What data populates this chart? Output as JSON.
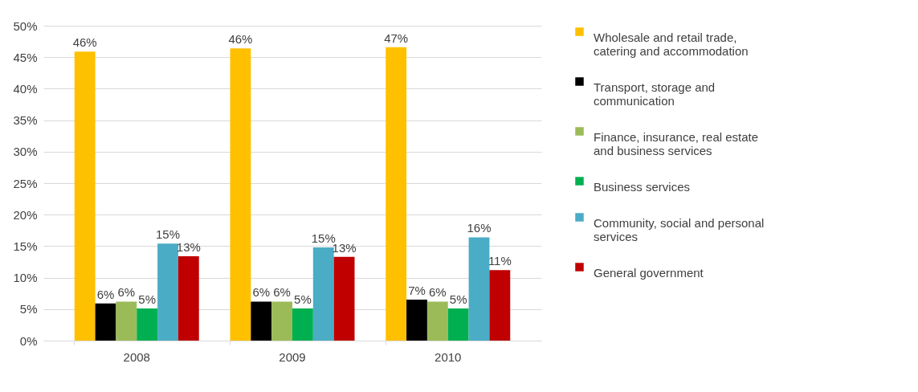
{
  "chart_data": {
    "type": "bar",
    "categories": [
      "2008",
      "2009",
      "2010"
    ],
    "series": [
      {
        "name": "Wholesale and retail trade, catering and accommodation",
        "color": "#ffc000",
        "values": [
          45.9,
          46.4,
          46.6
        ],
        "value_labels": [
          "46%",
          "46%",
          "47%"
        ]
      },
      {
        "name": "Transport, storage and communication",
        "color": "#000000",
        "values": [
          5.9,
          6.2,
          6.5
        ],
        "value_labels": [
          "6%",
          "6%",
          "7%"
        ]
      },
      {
        "name": "Finance, insurance, real estate and business services",
        "color": "#9bbb59",
        "values": [
          6.2,
          6.2,
          6.2
        ],
        "value_labels": [
          "6%",
          "6%",
          "6%"
        ]
      },
      {
        "name": "Business services",
        "color": "#00b050",
        "values": [
          5.1,
          5.1,
          5.1
        ],
        "value_labels": [
          "5%",
          "5%",
          "5%"
        ]
      },
      {
        "name": "Community, social and personal services",
        "color": "#4bacc6",
        "values": [
          15.4,
          14.8,
          16.4
        ],
        "value_labels": [
          "15%",
          "15%",
          "16%"
        ]
      },
      {
        "name": "General government",
        "color": "#c00000",
        "values": [
          13.4,
          13.3,
          11.2
        ],
        "value_labels": [
          "13%",
          "13%",
          "11%"
        ]
      }
    ],
    "ylim": [
      0,
      50
    ],
    "yticks": [
      {
        "value": 0,
        "label": "0%"
      },
      {
        "value": 5,
        "label": "5%"
      },
      {
        "value": 10,
        "label": "10%"
      },
      {
        "value": 15,
        "label": "15%"
      },
      {
        "value": 20,
        "label": "20%"
      },
      {
        "value": 25,
        "label": "25%"
      },
      {
        "value": 30,
        "label": "30%"
      },
      {
        "value": 35,
        "label": "35%"
      },
      {
        "value": 40,
        "label": "40%"
      },
      {
        "value": 45,
        "label": "45%"
      },
      {
        "value": 50,
        "label": "50%"
      }
    ],
    "grid": "y",
    "legend": "right"
  }
}
